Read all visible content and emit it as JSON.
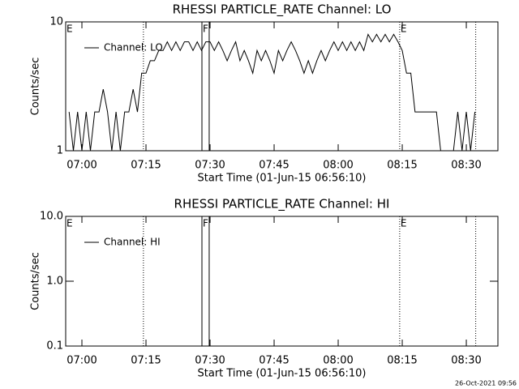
{
  "chart_data": [
    {
      "type": "line",
      "title": "RHESSI PARTICLE_RATE Channel: LO",
      "ylabel": "Counts/sec",
      "xlabel": "Start Time (01-Jun-15 06:56:10)",
      "log_scale": true,
      "ylim": [
        1,
        10
      ],
      "yticks": [
        1,
        10
      ],
      "xlim": [
        416.2,
        517.4
      ],
      "xticks": [
        {
          "value": 420,
          "label": "07:00"
        },
        {
          "value": 435,
          "label": "07:15"
        },
        {
          "value": 450,
          "label": "07:30"
        },
        {
          "value": 465,
          "label": "07:45"
        },
        {
          "value": 480,
          "label": "08:00"
        },
        {
          "value": 495,
          "label": "08:15"
        },
        {
          "value": 510,
          "label": "08:30"
        }
      ],
      "event_labels": [
        {
          "x": 416.2,
          "label": "E"
        },
        {
          "x": 448.1,
          "label": "F"
        },
        {
          "x": 494.4,
          "label": "E"
        }
      ],
      "dotted_lines": [
        434.4,
        494.4,
        512.2
      ],
      "solid_lines": [
        448.1,
        449.8
      ],
      "x": [
        417,
        418,
        419,
        420,
        421,
        422,
        423,
        424,
        425,
        426,
        427,
        428,
        429,
        430,
        431,
        432,
        433,
        434,
        435,
        436,
        437,
        438,
        439,
        440,
        441,
        442,
        443,
        444,
        445,
        446,
        447,
        448,
        449,
        450,
        451,
        452,
        453,
        454,
        455,
        456,
        457,
        458,
        459,
        460,
        461,
        462,
        463,
        464,
        465,
        466,
        467,
        468,
        469,
        470,
        471,
        472,
        473,
        474,
        475,
        476,
        477,
        478,
        479,
        480,
        481,
        482,
        483,
        484,
        485,
        486,
        487,
        488,
        489,
        490,
        491,
        492,
        493,
        494,
        495,
        496,
        497,
        498,
        499,
        500,
        501,
        502,
        503,
        504,
        505,
        506,
        507,
        508,
        509,
        510,
        511,
        512
      ],
      "series": [
        {
          "name": "Channel: LO",
          "color": "#000000",
          "values": [
            2,
            1,
            2,
            1,
            2,
            1,
            2,
            2,
            3,
            2,
            1,
            2,
            1,
            2,
            2,
            3,
            2,
            4,
            4,
            5,
            5,
            6,
            6,
            7,
            6,
            7,
            6,
            7,
            7,
            6,
            7,
            6,
            7,
            7,
            6,
            7,
            6,
            5,
            6,
            7,
            5,
            6,
            5,
            4,
            6,
            5,
            6,
            5,
            4,
            6,
            5,
            6,
            7,
            6,
            5,
            4,
            5,
            4,
            5,
            6,
            5,
            6,
            7,
            6,
            7,
            6,
            7,
            6,
            7,
            6,
            8,
            7,
            8,
            7,
            8,
            7,
            8,
            7,
            6,
            4,
            4,
            2,
            2,
            2,
            2,
            2,
            2,
            1,
            1,
            1,
            1,
            2,
            1,
            2,
            1,
            2
          ]
        }
      ]
    },
    {
      "type": "line",
      "title": "RHESSI PARTICLE_RATE Channel: HI",
      "ylabel": "Counts/sec",
      "xlabel": "Start Time (01-Jun-15 06:56:10)",
      "log_scale": true,
      "ylim": [
        0.1,
        10
      ],
      "yticks": [
        0.1,
        {
          "value": 1,
          "label": "1.0"
        },
        {
          "value": 10,
          "label": "10.0"
        }
      ],
      "xlim": [
        416.2,
        517.4
      ],
      "xticks": [
        {
          "value": 420,
          "label": "07:00"
        },
        {
          "value": 435,
          "label": "07:15"
        },
        {
          "value": 450,
          "label": "07:30"
        },
        {
          "value": 465,
          "label": "07:45"
        },
        {
          "value": 480,
          "label": "08:00"
        },
        {
          "value": 495,
          "label": "08:15"
        },
        {
          "value": 510,
          "label": "08:30"
        }
      ],
      "event_labels": [
        {
          "x": 416.2,
          "label": "E"
        },
        {
          "x": 448.1,
          "label": "F"
        },
        {
          "x": 494.4,
          "label": "E"
        }
      ],
      "dotted_lines": [
        434.4,
        494.4,
        512.2
      ],
      "solid_lines": [
        448.1,
        449.8
      ],
      "x": [],
      "series": [
        {
          "name": "Channel: HI",
          "color": "#000000",
          "values": []
        }
      ]
    }
  ],
  "footer": "26-Oct-2021 09:56"
}
